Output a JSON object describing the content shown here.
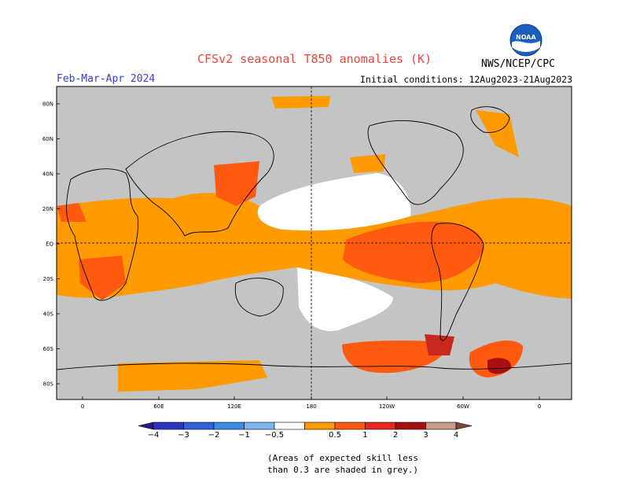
{
  "header": {
    "title": "CFSv2 seasonal T850 anomalies (K)",
    "season": "Feb-Mar-Apr 2024",
    "initial_conditions": "Initial conditions: 12Aug2023-21Aug2023",
    "agency": "NWS/NCEP/CPC",
    "logo_text": "NOAA"
  },
  "map": {
    "lat_labels": [
      "80N",
      "60N",
      "40N",
      "20N",
      "EQ",
      "20S",
      "40S",
      "60S",
      "80S"
    ],
    "lon_labels": [
      "0",
      "60E",
      "120E",
      "180",
      "120W",
      "60W",
      "0"
    ],
    "background_color": "#c4c4c4",
    "coast_color": "#000000"
  },
  "colorbar": {
    "labels": [
      "-4",
      "-3",
      "-2",
      "-1",
      "-0.5",
      "0.5",
      "1",
      "2",
      "3",
      "4"
    ],
    "colors": [
      "#2a1a8c",
      "#2c35c2",
      "#2f60d8",
      "#3b8be6",
      "#7fb6f0",
      "#ffffff",
      "#ff9a00",
      "#ff5a10",
      "#e8281e",
      "#a81010",
      "#c89a8a",
      "#7a4a3a"
    ]
  },
  "note": {
    "line1": "(Areas of expected skill less",
    "line2": "than 0.3 are shaded in grey.)"
  }
}
